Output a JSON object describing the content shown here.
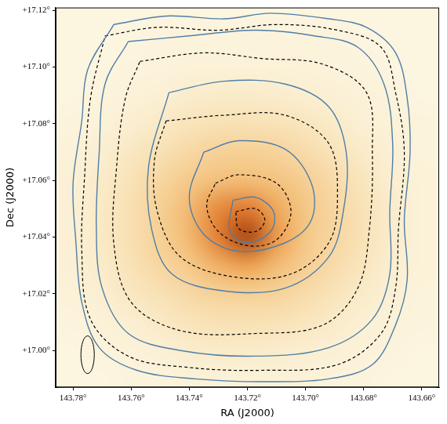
{
  "chart_data": {
    "type": "contour",
    "x_label": "RA (J2000)",
    "y_label": "Dec (J2000)",
    "xlim": [
      143.786,
      143.654
    ],
    "ylim": [
      16.987,
      17.121
    ],
    "xticks": [
      {
        "value": 143.78,
        "label": "143.78°"
      },
      {
        "value": 143.76,
        "label": "143.76°"
      },
      {
        "value": 143.74,
        "label": "143.74°"
      },
      {
        "value": 143.72,
        "label": "143.72°"
      },
      {
        "value": 143.7,
        "label": "143.70°"
      },
      {
        "value": 143.68,
        "label": "143.68°"
      },
      {
        "value": 143.66,
        "label": "143.66°"
      }
    ],
    "yticks": [
      {
        "value": 17.0,
        "label": "+17.00°"
      },
      {
        "value": 17.02,
        "label": "+17.02°"
      },
      {
        "value": 17.04,
        "label": "+17.04°"
      },
      {
        "value": 17.06,
        "label": "+17.06°"
      },
      {
        "value": 17.08,
        "label": "+17.08°"
      },
      {
        "value": 17.1,
        "label": "+17.10°"
      },
      {
        "value": 17.12,
        "label": "+17.12°"
      }
    ],
    "grid": false,
    "image": {
      "x": [
        143.78,
        143.77,
        143.76,
        143.75,
        143.74,
        143.73,
        143.72,
        143.71,
        143.7,
        143.69,
        143.68,
        143.67,
        143.66
      ],
      "y": [
        17.12,
        17.11,
        17.1,
        17.09,
        17.08,
        17.07,
        17.06,
        17.05,
        17.04,
        17.03,
        17.02,
        17.01,
        17.0,
        16.99
      ],
      "values": [
        [
          5,
          5,
          5,
          5,
          5,
          5,
          5,
          5,
          5,
          5,
          5,
          5,
          5
        ],
        [
          5,
          5,
          5,
          6,
          6,
          6,
          6,
          6,
          6,
          6,
          5,
          5,
          5
        ],
        [
          5,
          5,
          6,
          6,
          7,
          7,
          7,
          7,
          7,
          6,
          6,
          5,
          5
        ],
        [
          5,
          6,
          7,
          8,
          10,
          11,
          11,
          10,
          9,
          8,
          7,
          6,
          5
        ],
        [
          6,
          7,
          9,
          12,
          15,
          17,
          17,
          16,
          14,
          11,
          8,
          7,
          6
        ],
        [
          7,
          9,
          13,
          17,
          22,
          26,
          27,
          25,
          20,
          15,
          11,
          8,
          6
        ],
        [
          8,
          11,
          16,
          23,
          31,
          36,
          37,
          34,
          28,
          20,
          14,
          9,
          7
        ],
        [
          8,
          12,
          18,
          27,
          40,
          62,
          69,
          48,
          32,
          23,
          16,
          10,
          7
        ],
        [
          8,
          12,
          18,
          27,
          40,
          67,
          99,
          55,
          32,
          23,
          16,
          10,
          7
        ],
        [
          8,
          11,
          16,
          23,
          31,
          44,
          52,
          39,
          28,
          20,
          14,
          9,
          7
        ],
        [
          7,
          9,
          13,
          17,
          22,
          26,
          27,
          25,
          20,
          15,
          11,
          8,
          6
        ],
        [
          6,
          7,
          9,
          12,
          15,
          17,
          17,
          16,
          14,
          11,
          8,
          7,
          6
        ],
        [
          5,
          6,
          7,
          8,
          10,
          11,
          11,
          10,
          9,
          8,
          7,
          6,
          5
        ],
        [
          5,
          5,
          6,
          6,
          7,
          7,
          7,
          7,
          7,
          6,
          6,
          5,
          5
        ]
      ]
    },
    "series": [
      {
        "color": "#4f7ea6",
        "line_style": "solid",
        "x": [
          143.766,
          143.748,
          143.728,
          143.712,
          143.692,
          143.679,
          143.669,
          143.665,
          143.664,
          143.666,
          143.665,
          143.669,
          143.677,
          143.692,
          143.715,
          143.738,
          143.758,
          143.771,
          143.777,
          143.779,
          143.78,
          143.777,
          143.775
        ],
        "y": [
          17.115,
          17.118,
          17.117,
          17.119,
          17.117,
          17.114,
          17.105,
          17.089,
          17.07,
          17.046,
          17.025,
          17.009,
          16.995,
          16.99,
          16.989,
          16.99,
          16.993,
          17.001,
          17.017,
          17.038,
          17.059,
          17.081,
          17.099
        ]
      },
      {
        "color": "#4f7ea6",
        "line_style": "solid",
        "x": [
          143.761,
          143.74,
          143.717,
          143.697,
          143.682,
          143.673,
          143.67,
          143.671,
          143.671,
          143.677,
          143.692,
          143.717,
          143.743,
          143.761,
          143.77,
          143.772,
          143.771,
          143.769
        ],
        "y": [
          17.109,
          17.111,
          17.113,
          17.111,
          17.107,
          17.094,
          17.073,
          17.049,
          17.027,
          17.011,
          17.001,
          16.998,
          17.0,
          17.006,
          17.022,
          17.043,
          17.07,
          17.094
        ]
      },
      {
        "color": "#4f7ea6",
        "line_style": "solid",
        "x": [
          143.747,
          143.728,
          143.707,
          143.692,
          143.686,
          143.687,
          143.692,
          143.707,
          143.728,
          143.746,
          143.753,
          143.754
        ],
        "y": [
          17.091,
          17.095,
          17.094,
          17.086,
          17.07,
          17.049,
          17.033,
          17.022,
          17.021,
          17.027,
          17.043,
          17.065
        ]
      },
      {
        "color": "#4f7ea6",
        "line_style": "solid",
        "x": [
          143.735,
          143.723,
          143.707,
          143.698,
          143.698,
          143.707,
          143.723,
          143.735,
          143.74
        ],
        "y": [
          17.07,
          17.074,
          17.071,
          17.059,
          17.046,
          17.038,
          17.035,
          17.041,
          17.054
        ]
      },
      {
        "color": "#4f7ea6",
        "line_style": "solid",
        "x": [
          143.725,
          143.717,
          143.711,
          143.712,
          143.72,
          143.726
        ],
        "y": [
          17.053,
          17.054,
          17.049,
          17.042,
          17.038,
          17.042
        ]
      },
      {
        "color": "#000000",
        "line_style": "dashed",
        "x": [
          143.769,
          143.751,
          143.73,
          143.71,
          143.689,
          143.674,
          143.669,
          143.666,
          143.668,
          143.669,
          143.674,
          143.689,
          143.715,
          143.74,
          143.761,
          143.774,
          143.777,
          143.776,
          143.774
        ],
        "y": [
          17.111,
          17.114,
          17.113,
          17.115,
          17.113,
          17.107,
          17.091,
          17.07,
          17.043,
          17.022,
          17.006,
          16.995,
          16.993,
          16.994,
          16.998,
          17.011,
          17.035,
          17.062,
          17.089
        ]
      },
      {
        "color": "#000000",
        "line_style": "dashed",
        "x": [
          143.757,
          143.735,
          143.715,
          143.694,
          143.679,
          143.677,
          143.678,
          143.682,
          143.694,
          143.717,
          143.743,
          143.76,
          143.766,
          143.765,
          143.762
        ],
        "y": [
          17.102,
          17.105,
          17.103,
          17.101,
          17.091,
          17.07,
          17.043,
          17.022,
          17.009,
          17.006,
          17.007,
          17.017,
          17.038,
          17.065,
          17.089
        ]
      },
      {
        "color": "#000000",
        "line_style": "dashed",
        "x": [
          143.748,
          143.728,
          143.707,
          143.692,
          143.689,
          143.692,
          143.705,
          143.725,
          143.743,
          143.751,
          143.752
        ],
        "y": [
          17.081,
          17.083,
          17.083,
          17.073,
          17.054,
          17.038,
          17.027,
          17.026,
          17.033,
          17.049,
          17.067
        ]
      },
      {
        "color": "#000000",
        "line_style": "dashed",
        "x": [
          143.731,
          143.723,
          143.71,
          143.705,
          143.71,
          143.72,
          143.73,
          143.734
        ],
        "y": [
          17.059,
          17.062,
          17.059,
          17.049,
          17.039,
          17.037,
          17.042,
          17.051
        ]
      },
      {
        "color": "#000000",
        "line_style": "dashed",
        "x": [
          143.724,
          143.717,
          143.714,
          143.717,
          143.723
        ],
        "y": [
          17.049,
          17.05,
          17.046,
          17.042,
          17.043
        ]
      }
    ],
    "beam": {
      "x": 143.775,
      "y": 16.9985,
      "width": 0.0046,
      "height": 0.0133
    }
  }
}
